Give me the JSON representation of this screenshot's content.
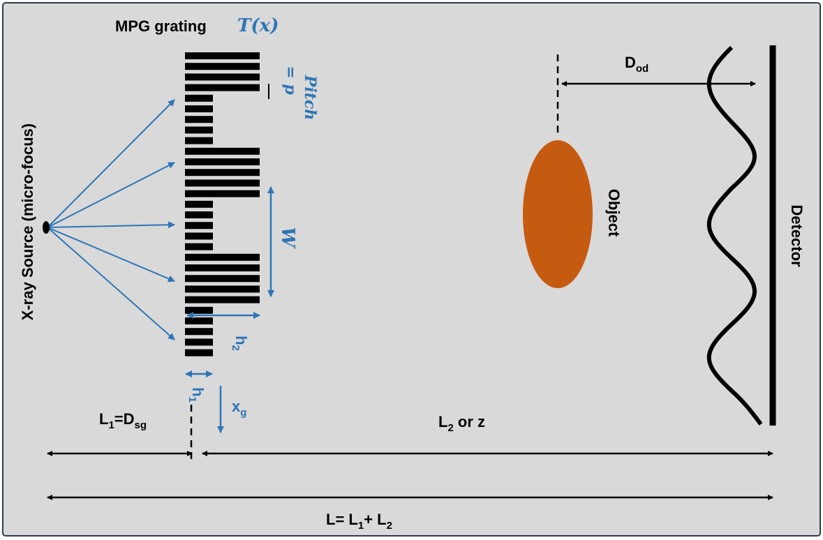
{
  "header": {
    "title": "MPG grating",
    "function": "T(x)"
  },
  "source": {
    "label": "X-ray Source (micro-focus)"
  },
  "grating": {
    "pitch": {
      "word": "Pitch",
      "equation": "= p"
    },
    "width": "W",
    "h2": {
      "main": "h",
      "sub": "2"
    },
    "h1": {
      "main": "h",
      "sub": "1"
    },
    "xg": {
      "main": "x",
      "sub": "g"
    }
  },
  "object": {
    "label": "Object"
  },
  "detector": {
    "label": "Detector"
  },
  "distances": {
    "dod": {
      "main": "D",
      "sub": "od"
    },
    "l1": {
      "a": "L",
      "a_sub": "1",
      "eq": "=D",
      "b_sub": "sg"
    },
    "l2": {
      "a": "L",
      "a_sub": "2",
      "rest": " or z"
    },
    "total": {
      "a": "L= L",
      "a_sub": "1",
      "plus": "+ L",
      "b_sub": "2"
    }
  }
}
